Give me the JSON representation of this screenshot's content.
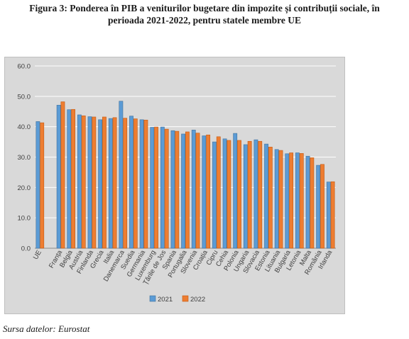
{
  "figure": {
    "title_line1": "Figura 3: Ponderea în PIB a veniturilor bugetare din impozite și contribuții sociale, în",
    "title_line2": "perioada 2021-2022, pentru statele membre UE"
  },
  "source": "Sursa datelor: Eurostat",
  "chart_data": {
    "type": "bar",
    "title": "",
    "xlabel": "",
    "ylabel": "",
    "ylim": [
      0,
      60
    ],
    "yticks": [
      "0.0",
      "10.0",
      "20.0",
      "30.0",
      "40.0",
      "50.0",
      "60.0"
    ],
    "grid": true,
    "legend": "bottom",
    "categories": [
      "UE",
      "",
      "Franța",
      "Belgia",
      "Austria",
      "Finlanda",
      "Grecia",
      "Italia",
      "Danemarca",
      "Suedia",
      "Germania",
      "Luxemburg",
      "Țările de Jos",
      "Spania",
      "Portugalia",
      "Slovenia",
      "Croația",
      "Cipru",
      "Cehia",
      "Polonia",
      "Ungaria",
      "Slovacia",
      "Estonia",
      "Lituania",
      "Bulgaria",
      "Letonia",
      "Malta",
      "România",
      "Irlanda"
    ],
    "series": [
      {
        "name": "2021",
        "color": "#5b9bd5",
        "values": [
          41.7,
          null,
          47.1,
          45.6,
          43.9,
          43.3,
          42.3,
          42.7,
          48.4,
          43.5,
          42.3,
          39.8,
          39.9,
          38.7,
          37.6,
          38.9,
          37.0,
          35.0,
          36.0,
          37.8,
          34.1,
          35.7,
          34.3,
          32.5,
          31.1,
          31.4,
          30.3,
          27.3,
          21.8
        ]
      },
      {
        "name": "2022",
        "color": "#ed7d31",
        "values": [
          41.3,
          null,
          48.2,
          45.7,
          43.6,
          43.2,
          43.2,
          43.0,
          42.8,
          42.6,
          42.2,
          39.9,
          39.2,
          38.5,
          38.3,
          37.9,
          37.3,
          36.7,
          35.5,
          35.5,
          35.2,
          35.2,
          33.3,
          32.2,
          31.4,
          31.2,
          29.8,
          27.6,
          21.9
        ]
      }
    ]
  }
}
